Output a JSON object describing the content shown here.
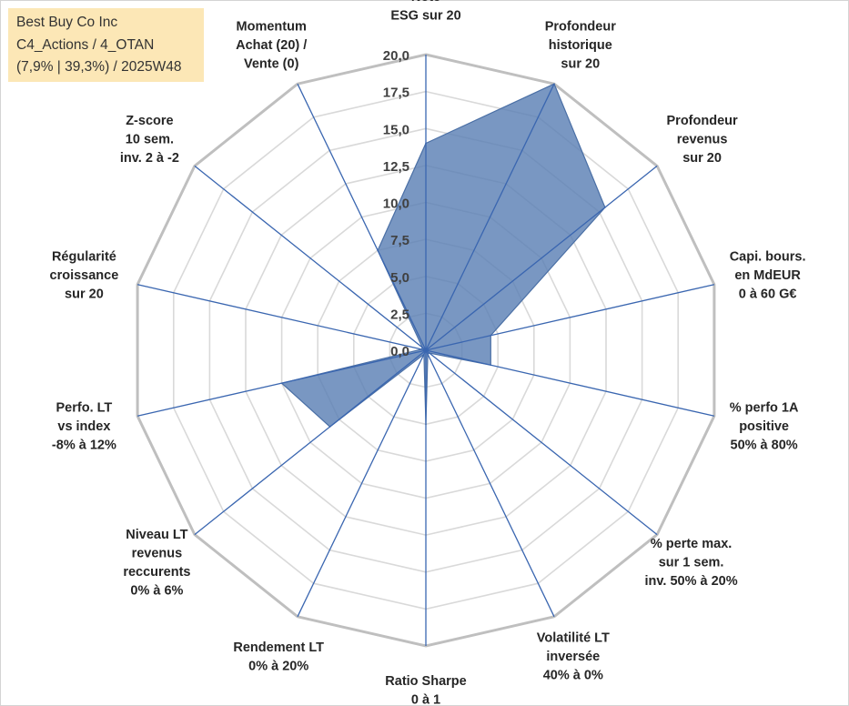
{
  "info": {
    "line1": "Best Buy Co Inc",
    "line2": "C4_Actions / 4_OTAN",
    "line3": "(7,9% | 39,3%) / 2025W48"
  },
  "colors": {
    "fill": "#5b80b4",
    "stroke": "#4a6fa5",
    "spokes": "#3a66b0",
    "grid_major": "#bfbfbf",
    "grid_minor": "#d9d9d9"
  },
  "chart_data": {
    "type": "radar",
    "rmin": 0,
    "rmax": 20,
    "tick_step": 2.5,
    "tick_labels": [
      "0,0",
      "2,5",
      "5,0",
      "7,5",
      "10,0",
      "12,5",
      "15,0",
      "17,5",
      "20,0"
    ],
    "axes": [
      {
        "label": [
          "Note",
          "ESG sur 20"
        ],
        "value": 14.0
      },
      {
        "label": [
          "Profondeur",
          "historique",
          "sur 20"
        ],
        "value": 20.0
      },
      {
        "label": [
          "Profondeur",
          "revenus",
          "sur 20"
        ],
        "value": 15.5
      },
      {
        "label": [
          "Capi. bours.",
          "en MdEUR",
          "0 à 60 G€"
        ],
        "value": 4.5
      },
      {
        "label": [
          "% perfo 1A",
          "positive",
          "50% à 80%"
        ],
        "value": 4.5
      },
      {
        "label": [
          "% perte max.",
          "sur 1 sem.",
          "inv. 50% à 20%"
        ],
        "value": 0.3
      },
      {
        "label": [
          "Volatilité LT",
          "inversée",
          "40% à 0%"
        ],
        "value": 0.3
      },
      {
        "label": [
          "Ratio Sharpe",
          "0 à 1"
        ],
        "value": 5.0
      },
      {
        "label": [
          "Rendement LT",
          "0% à 20%"
        ],
        "value": 0.3
      },
      {
        "label": [
          "Niveau LT",
          "revenus",
          "reccurents",
          "0% à 6%"
        ],
        "value": 8.3
      },
      {
        "label": [
          "Perfo. LT",
          "vs index",
          "-8% à 12%"
        ],
        "value": 10.0
      },
      {
        "label": [
          "Régularité",
          "croissance",
          "sur 20"
        ],
        "value": 0.3
      },
      {
        "label": [
          "Z-score",
          "10 sem.",
          "inv. 2 à -2"
        ],
        "value": 0.3
      },
      {
        "label": [
          "Momentum",
          "Achat (20) /",
          "Vente (0)"
        ],
        "value": 7.5
      }
    ]
  }
}
